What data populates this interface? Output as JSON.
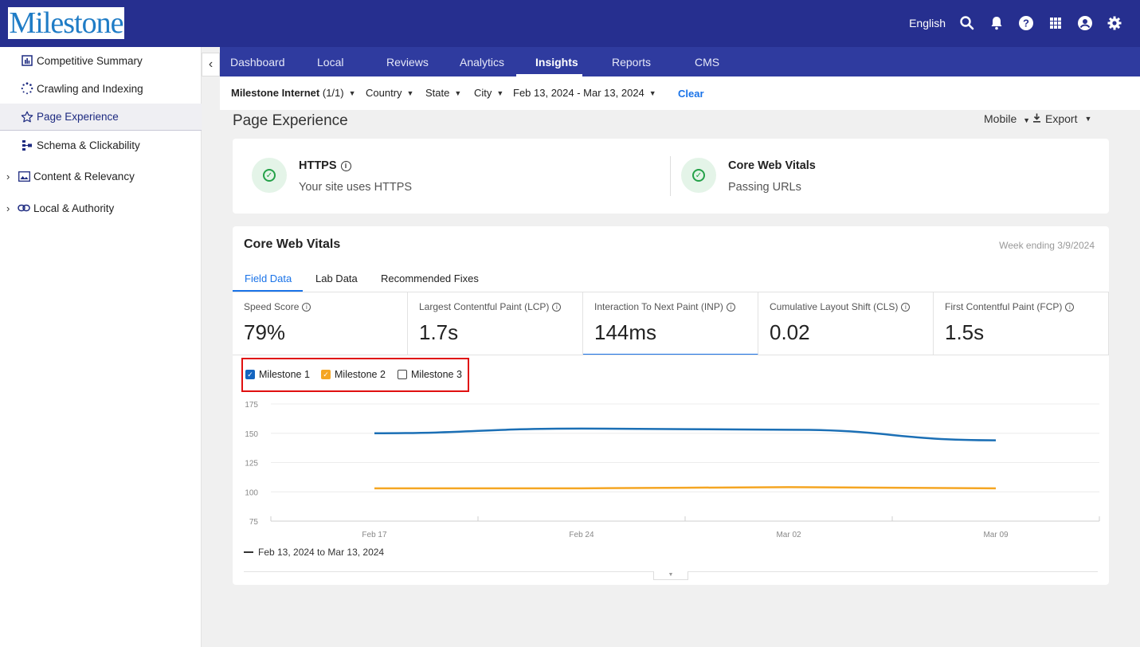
{
  "app": {
    "logo_text": "Milestone",
    "language": "English"
  },
  "topbar_icons": [
    "search-icon",
    "bell-icon",
    "help-icon",
    "apps-grid-icon",
    "account-icon",
    "settings-gear-icon"
  ],
  "sidebar": {
    "items": [
      {
        "label": "Competitive Summary",
        "icon": "bar-chart-icon"
      },
      {
        "label": "Crawling and Indexing",
        "icon": "spinner-icon"
      },
      {
        "label": "Page Experience",
        "icon": "star-outline-icon",
        "active": true
      },
      {
        "label": "Schema & Clickability",
        "icon": "schema-tree-icon"
      },
      {
        "label": "Content & Relevancy",
        "icon": "image-icon",
        "expandable": true
      },
      {
        "label": "Local & Authority",
        "icon": "link-icon",
        "expandable": true
      }
    ]
  },
  "nav": {
    "tabs": [
      "Dashboard",
      "Local",
      "Reviews",
      "Analytics",
      "Insights",
      "Reports",
      "CMS"
    ],
    "active": "Insights"
  },
  "filters": {
    "account": "Milestone Internet",
    "account_count": "(1/1)",
    "country": "Country",
    "state": "State",
    "city": "City",
    "date_range": "Feb 13, 2024 - Mar 13, 2024",
    "clear": "Clear"
  },
  "page": {
    "title": "Page Experience",
    "device": "Mobile",
    "export": "Export"
  },
  "status_cards": {
    "https": {
      "title": "HTTPS",
      "subtitle": "Your site uses HTTPS"
    },
    "cwv": {
      "title": "Core Web Vitals",
      "subtitle": "Passing URLs"
    }
  },
  "cwv_card": {
    "title": "Core Web Vitals",
    "week_ending": "Week ending 3/9/2024",
    "tabs": [
      "Field Data",
      "Lab Data",
      "Recommended Fixes"
    ],
    "active_tab": "Field Data",
    "metrics": [
      {
        "label": "Speed Score",
        "value": "79%"
      },
      {
        "label": "Largest Contentful Paint (LCP)",
        "value": "1.7s"
      },
      {
        "label": "Interaction To Next Paint (INP)",
        "value": "144ms",
        "selected": true
      },
      {
        "label": "Cumulative Layout Shift (CLS)",
        "value": "0.02"
      },
      {
        "label": "First Contentful Paint (FCP)",
        "value": "1.5s"
      }
    ],
    "legend": [
      {
        "label": "Milestone 1",
        "checked": true,
        "color": "#1565c0"
      },
      {
        "label": "Milestone 2",
        "checked": true,
        "color": "#f5a623"
      },
      {
        "label": "Milestone 3",
        "checked": false
      }
    ],
    "date_range_label": "Feb 13, 2024 to Mar 13, 2024"
  },
  "chart_data": {
    "type": "line",
    "x": [
      "Feb 17",
      "Feb 24",
      "Mar 02",
      "Mar 09"
    ],
    "ylim": [
      75,
      175
    ],
    "y_ticks": [
      175,
      150,
      125,
      100,
      75
    ],
    "series": [
      {
        "name": "Milestone 1",
        "color": "#1b6fb5",
        "values": [
          150,
          154,
          153,
          144
        ]
      },
      {
        "name": "Milestone 2",
        "color": "#f5a623",
        "values": [
          103,
          103,
          104,
          103
        ]
      }
    ]
  }
}
